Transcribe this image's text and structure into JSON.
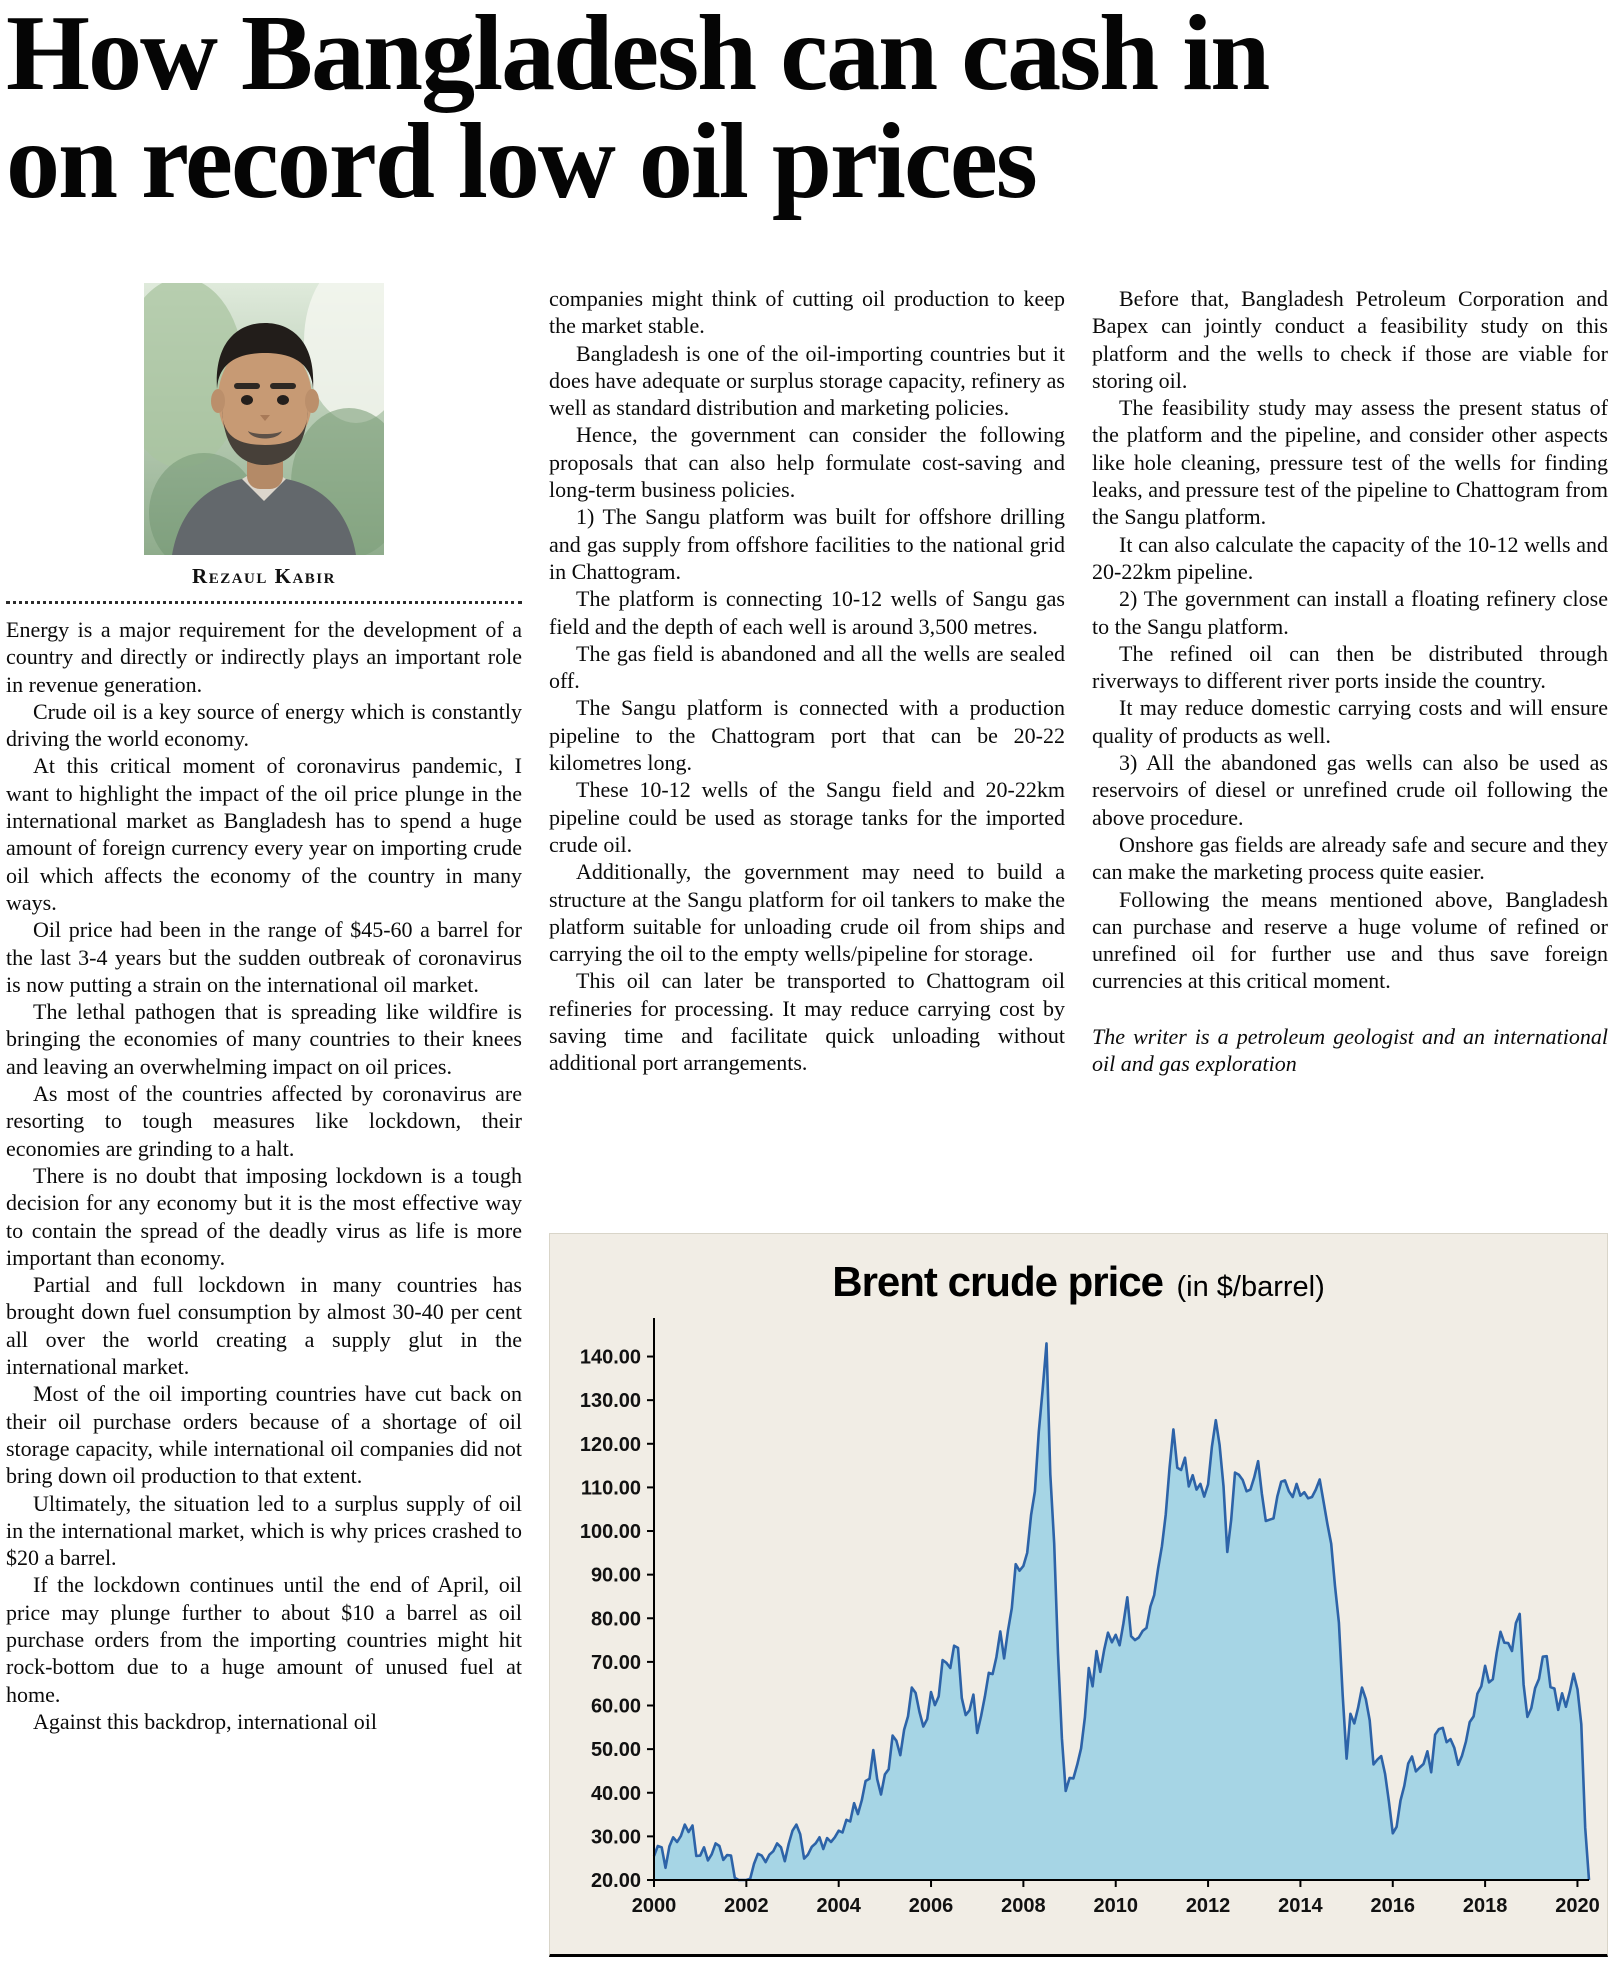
{
  "headline": {
    "line1": "How Bangladesh can cash in",
    "line2": "on record low oil prices"
  },
  "byline": "Rezaul Kabir",
  "columns": {
    "col1": [
      "Energy is a major requirement for the development of a country and directly or indirectly plays an important role in revenue generation.",
      "Crude oil is a key source of energy which is constantly driving the world economy.",
      "At this critical moment of coronavirus pandemic, I want to highlight the impact of the oil price plunge in the international market as Bangladesh has to spend a huge amount of foreign currency every year on importing crude oil which affects the economy of the country in many ways.",
      "Oil price had been in the range of $45-60 a barrel for the last 3-4 years but the sudden outbreak of coronavirus is now putting a strain on the international oil market.",
      "The lethal pathogen that is spreading like wildfire is bringing the economies of many countries to their knees and leaving an overwhelming impact on oil prices.",
      "As most of the countries affected by coronavirus are resorting to tough measures like lockdown, their economies are grinding to a halt.",
      "There is no doubt that imposing lockdown is a tough decision for any economy but it is the most effective way to contain the spread of the deadly virus as life is more important than economy.",
      "Partial and full lockdown in many countries has brought down fuel consumption by almost 30-40 per cent all over the world creating a supply glut in the international market.",
      "Most of the oil importing countries have cut back on their oil purchase orders because of a shortage of oil storage capacity, while international oil companies did not bring down oil production to that extent.",
      "Ultimately, the situation led to a surplus supply of oil in the international market, which is why prices crashed to $20 a barrel.",
      "If the lockdown continues until the end of April, oil price may plunge further to about $10 a barrel as oil purchase orders from the importing countries might hit rock-bottom due to a huge amount of unused fuel at home.",
      "Against this backdrop, international oil"
    ],
    "col2": [
      "companies might think of cutting oil production to keep the market stable.",
      "Bangladesh is one of the oil-importing countries but it does have adequate or surplus storage capacity, refinery as well as standard distribution and marketing policies.",
      "Hence, the government can consider the following proposals that can also help formulate cost-saving and long-term business policies.",
      "1) The Sangu platform was built for offshore drilling and gas supply from offshore facilities to the national grid in Chattogram.",
      "The platform is connecting 10-12 wells of Sangu gas field and the depth of each well is around 3,500 metres.",
      "The gas field is abandoned and all the wells are sealed off.",
      "The Sangu platform is connected with a production pipeline to the Chattogram port that can be 20-22 kilometres long.",
      "These 10-12 wells of the Sangu field and 20-22km pipeline could be used as storage tanks for the imported crude oil.",
      "Additionally, the government may need to build a structure at the Sangu platform for oil tankers to make the platform suitable for unloading crude oil from ships and carrying the oil to the empty wells/pipeline for storage.",
      "This oil can later be transported to Chattogram oil refineries for processing. It may reduce carrying cost by saving time and facilitate quick unloading without additional port arrangements."
    ],
    "col3": [
      "Before that, Bangladesh Petroleum Corporation and Bapex can jointly conduct a feasibility study on this platform and the wells to check if those are viable for storing oil.",
      "The feasibility study may assess the present status of the platform and the pipeline, and consider other aspects like hole cleaning, pressure test of the wells for finding leaks, and pressure test of the pipeline to Chattogram from the Sangu platform.",
      "It can also calculate the capacity of the 10-12 wells and 20-22km pipeline.",
      "2) The government can install a floating refinery close to the Sangu platform.",
      "The refined oil can then be distributed through riverways to different river ports inside the country.",
      "It may reduce domestic carrying costs and will ensure quality of products as well.",
      "3) All the abandoned gas wells can also be used as reservoirs of diesel or unrefined crude oil following the above procedure.",
      "Onshore gas fields are already safe and secure and they can make the marketing process quite easier.",
      "Following the means mentioned above, Bangladesh can purchase and reserve a huge volume of refined or unrefined oil for further use and thus save foreign currencies at this critical moment."
    ],
    "col3_footer": "The writer is a petroleum geologist and an international oil and gas exploration"
  },
  "chart_data": {
    "type": "area",
    "title": "Brent crude price",
    "title_suffix": "(in $/barrel)",
    "xlabel": "",
    "ylabel": "",
    "x_start_year": 2000,
    "x_step_months": 1,
    "x_ticks": [
      2000,
      2002,
      2004,
      2006,
      2008,
      2010,
      2012,
      2014,
      2016,
      2018,
      2020
    ],
    "y_ticks": [
      "140.00",
      "130.00",
      "120.00",
      "110.00",
      "100.00",
      "90.00",
      "80.00",
      "70.00",
      "60.00",
      "50.00",
      "40.00",
      "30.00",
      "20.00"
    ],
    "ylim": [
      20,
      147
    ],
    "grid": false,
    "legend": false,
    "line_color": "#2d63a8",
    "fill_color": "#a6d5e5",
    "panel_bg": "#f1ede5",
    "values": [
      25.5,
      27.8,
      27.5,
      22.8,
      27.7,
      29.8,
      28.7,
      30.1,
      32.7,
      31.0,
      32.5,
      25.5,
      25.6,
      27.5,
      24.5,
      25.9,
      28.4,
      27.8,
      24.6,
      25.7,
      25.6,
      20.5,
      19.1,
      18.7,
      19.4,
      20.3,
      23.7,
      26.0,
      25.6,
      24.1,
      25.8,
      26.6,
      28.4,
      27.5,
      24.3,
      28.3,
      31.3,
      32.7,
      30.5,
      24.9,
      25.8,
      27.6,
      28.4,
      29.8,
      27.1,
      29.6,
      28.7,
      29.8,
      31.3,
      30.9,
      33.8,
      33.4,
      37.6,
      35.1,
      38.3,
      42.7,
      43.2,
      49.8,
      43.1,
      39.6,
      44.2,
      45.4,
      53.1,
      51.9,
      48.6,
      54.4,
      57.5,
      64.1,
      62.9,
      58.5,
      55.2,
      56.9,
      63.1,
      60.1,
      62.1,
      70.4,
      69.8,
      68.6,
      73.7,
      73.2,
      61.7,
      57.8,
      58.9,
      62.5,
      53.7,
      57.6,
      62.1,
      67.5,
      67.2,
      71.1,
      77.0,
      70.8,
      77.2,
      82.3,
      92.4,
      90.9,
      92.0,
      95.0,
      103.7,
      109.1,
      122.8,
      132.3,
      143.0,
      113.0,
      97.1,
      71.9,
      52.5,
      40.4,
      43.4,
      43.3,
      46.5,
      50.2,
      57.3,
      68.6,
      64.4,
      72.5,
      67.7,
      72.8,
      76.7,
      74.5,
      76.2,
      73.8,
      78.8,
      84.8,
      75.9,
      75.0,
      75.6,
      77.1,
      77.8,
      82.7,
      85.3,
      91.4,
      96.5,
      103.7,
      114.6,
      123.3,
      114.5,
      114.0,
      116.8,
      110.2,
      112.8,
      109.5,
      110.8,
      107.9,
      110.7,
      119.3,
      125.4,
      119.7,
      110.3,
      95.2,
      102.6,
      113.4,
      112.9,
      111.7,
      109.1,
      109.5,
      112.3,
      116.0,
      108.5,
      102.3,
      102.6,
      102.9,
      107.9,
      111.3,
      111.6,
      109.1,
      107.8,
      110.8,
      108.1,
      108.9,
      107.5,
      107.8,
      109.5,
      111.8,
      106.8,
      101.6,
      97.1,
      87.4,
      79.0,
      62.3,
      47.8,
      58.1,
      55.9,
      59.5,
      64.1,
      61.5,
      56.6,
      46.5,
      47.6,
      48.4,
      44.3,
      38.0,
      30.7,
      32.2,
      38.2,
      41.6,
      46.7,
      48.3,
      44.9,
      45.8,
      46.6,
      49.5,
      44.7,
      53.3,
      54.6,
      54.9,
      51.6,
      52.3,
      50.3,
      46.4,
      48.5,
      51.7,
      56.2,
      57.5,
      62.7,
      64.4,
      69.1,
      65.3,
      66.0,
      72.1,
      76.9,
      74.4,
      74.3,
      72.5,
      78.9,
      81.0,
      64.8,
      57.4,
      59.4,
      64.0,
      66.1,
      71.2,
      71.3,
      64.2,
      63.9,
      59.0,
      62.8,
      59.7,
      63.2,
      67.3,
      63.7,
      55.7,
      32.0,
      18.4
    ]
  }
}
